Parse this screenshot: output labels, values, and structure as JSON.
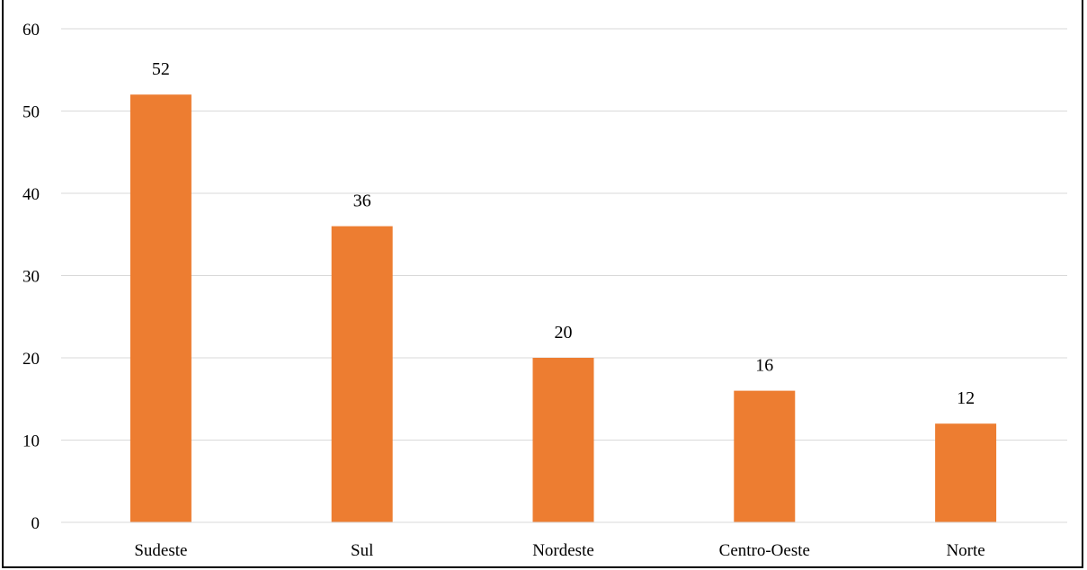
{
  "chart_data": {
    "type": "bar",
    "categories": [
      "Sudeste",
      "Sul",
      "Nordeste",
      "Centro-Oeste",
      "Norte"
    ],
    "values": [
      52,
      36,
      20,
      16,
      12
    ],
    "title": "",
    "xlabel": "",
    "ylabel": "",
    "ylim": [
      0,
      60
    ],
    "yticks": [
      0,
      10,
      20,
      30,
      40,
      50,
      60
    ],
    "grid": true,
    "bar_color": "#ED7D31",
    "grid_color": "#D9D9D9",
    "data_labels": true
  }
}
